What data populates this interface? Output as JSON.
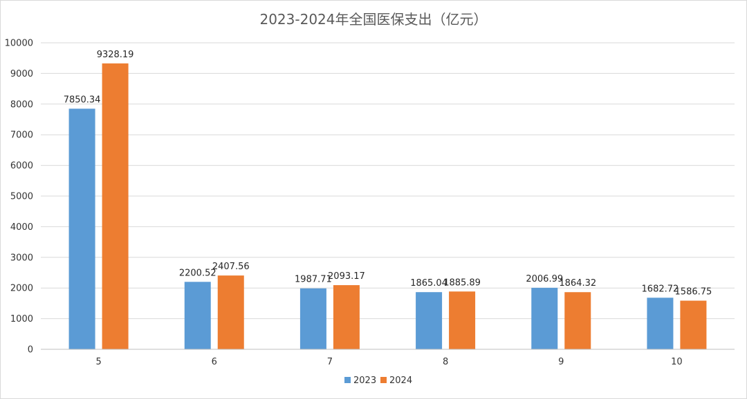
{
  "chart_data": {
    "type": "bar",
    "title": "2023-2024年全国医保支出（亿元）",
    "xlabel": "",
    "ylabel": "",
    "categories": [
      "5",
      "6",
      "7",
      "8",
      "9",
      "10"
    ],
    "series": [
      {
        "name": "2023",
        "color": "#5B9BD5",
        "values": [
          7850.34,
          2200.52,
          1987.71,
          1865.04,
          2006.99,
          1682.72
        ],
        "labels": [
          "7850.34",
          "2200.52",
          "1987.71",
          "1865.04",
          "2006.99",
          "1682.72"
        ]
      },
      {
        "name": "2024",
        "color": "#ED7D31",
        "values": [
          9328.19,
          2407.56,
          2093.17,
          1885.89,
          1864.32,
          1586.75
        ],
        "labels": [
          "9328.19",
          "2407.56",
          "2093.17",
          "1885.89",
          "1864.32",
          "1586.75"
        ]
      }
    ],
    "ylim": [
      0,
      10000
    ],
    "yticks": [
      "0",
      "1000",
      "2000",
      "3000",
      "4000",
      "5000",
      "6000",
      "7000",
      "8000",
      "9000",
      "10000"
    ],
    "grid": true,
    "legend": "bottom-center"
  }
}
